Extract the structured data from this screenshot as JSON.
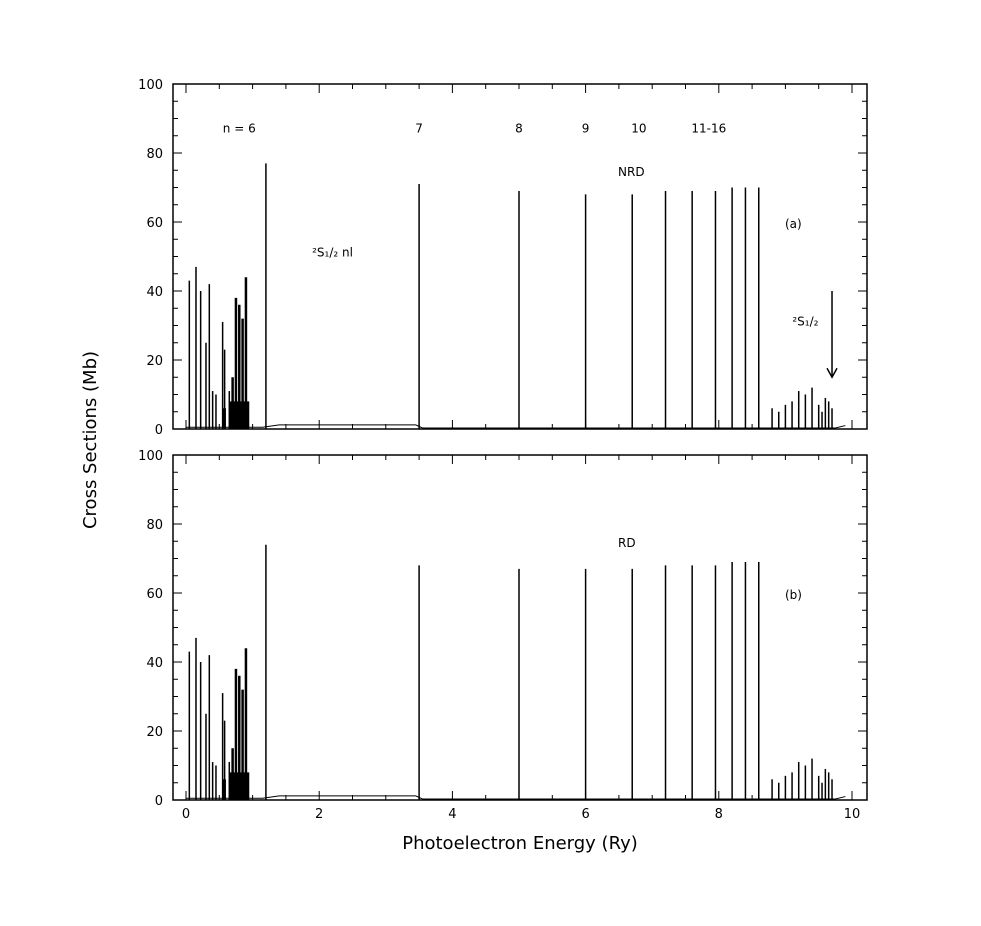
{
  "chart_data": [
    {
      "type": "line",
      "panel_label": "(a)",
      "method_label": "NRD",
      "ylabel": "Cross Sections (Mb)",
      "xlim": [
        0,
        10
      ],
      "ylim": [
        0,
        100
      ],
      "xticks": [
        0,
        2,
        4,
        6,
        8,
        10
      ],
      "yticks": [
        0,
        20,
        40,
        60,
        80,
        100
      ],
      "series": [
        {
          "x": [
            0.05,
            0.15,
            0.22,
            0.3,
            0.35,
            0.4,
            0.45,
            0.55,
            0.58,
            0.65,
            0.7,
            0.75,
            0.8,
            0.85,
            0.9,
            1.2,
            3.5,
            5.0,
            6.0,
            6.7,
            7.2,
            7.6,
            7.95,
            8.2,
            8.4,
            8.6,
            8.8,
            8.9,
            9.0,
            9.1,
            9.2,
            9.3,
            9.4,
            9.5,
            9.55,
            9.6,
            9.65,
            9.7
          ],
          "y": [
            43,
            47,
            40,
            25,
            42,
            11,
            10,
            31,
            23,
            11,
            15,
            38,
            36,
            32,
            44,
            77,
            71,
            69,
            68,
            68,
            69,
            69,
            69,
            70,
            70,
            70,
            6,
            5,
            7,
            8,
            11,
            10,
            12,
            7,
            5,
            9,
            8,
            6
          ]
        }
      ],
      "annotations": [
        {
          "text": "n = 6",
          "x": 0.8,
          "y": 86
        },
        {
          "text": "7",
          "x": 3.5,
          "y": 86
        },
        {
          "text": "8",
          "x": 5.0,
          "y": 86
        },
        {
          "text": "9",
          "x": 6.0,
          "y": 86
        },
        {
          "text": "10",
          "x": 6.8,
          "y": 86
        },
        {
          "text": "11-16",
          "x": 7.85,
          "y": 86
        },
        {
          "text": "²S₁/₂ nl",
          "x": 2.2,
          "y": 50
        },
        {
          "text": "²S₁/₂",
          "x": 9.3,
          "y": 30
        }
      ],
      "arrow": {
        "x": 9.7,
        "y_from": 40,
        "y_to": 15
      }
    },
    {
      "type": "line",
      "panel_label": "(b)",
      "method_label": "RD",
      "xlabel": "Photoelectron Energy (Ry)",
      "xlim": [
        0,
        10
      ],
      "ylim": [
        0,
        100
      ],
      "xticks": [
        0,
        2,
        4,
        6,
        8,
        10
      ],
      "yticks": [
        0,
        20,
        40,
        60,
        80,
        100
      ],
      "series": [
        {
          "x": [
            0.05,
            0.15,
            0.22,
            0.3,
            0.35,
            0.4,
            0.45,
            0.55,
            0.58,
            0.65,
            0.7,
            0.75,
            0.8,
            0.85,
            0.9,
            1.2,
            3.5,
            5.0,
            6.0,
            6.7,
            7.2,
            7.6,
            7.95,
            8.2,
            8.4,
            8.6,
            8.8,
            8.9,
            9.0,
            9.1,
            9.2,
            9.3,
            9.4,
            9.5,
            9.55,
            9.6,
            9.65,
            9.7
          ],
          "y": [
            43,
            47,
            40,
            25,
            42,
            11,
            10,
            31,
            23,
            11,
            15,
            38,
            36,
            32,
            44,
            74,
            68,
            67,
            67,
            67,
            68,
            68,
            68,
            69,
            69,
            69,
            6,
            5,
            7,
            8,
            11,
            10,
            12,
            7,
            5,
            9,
            8,
            6
          ]
        }
      ]
    }
  ]
}
